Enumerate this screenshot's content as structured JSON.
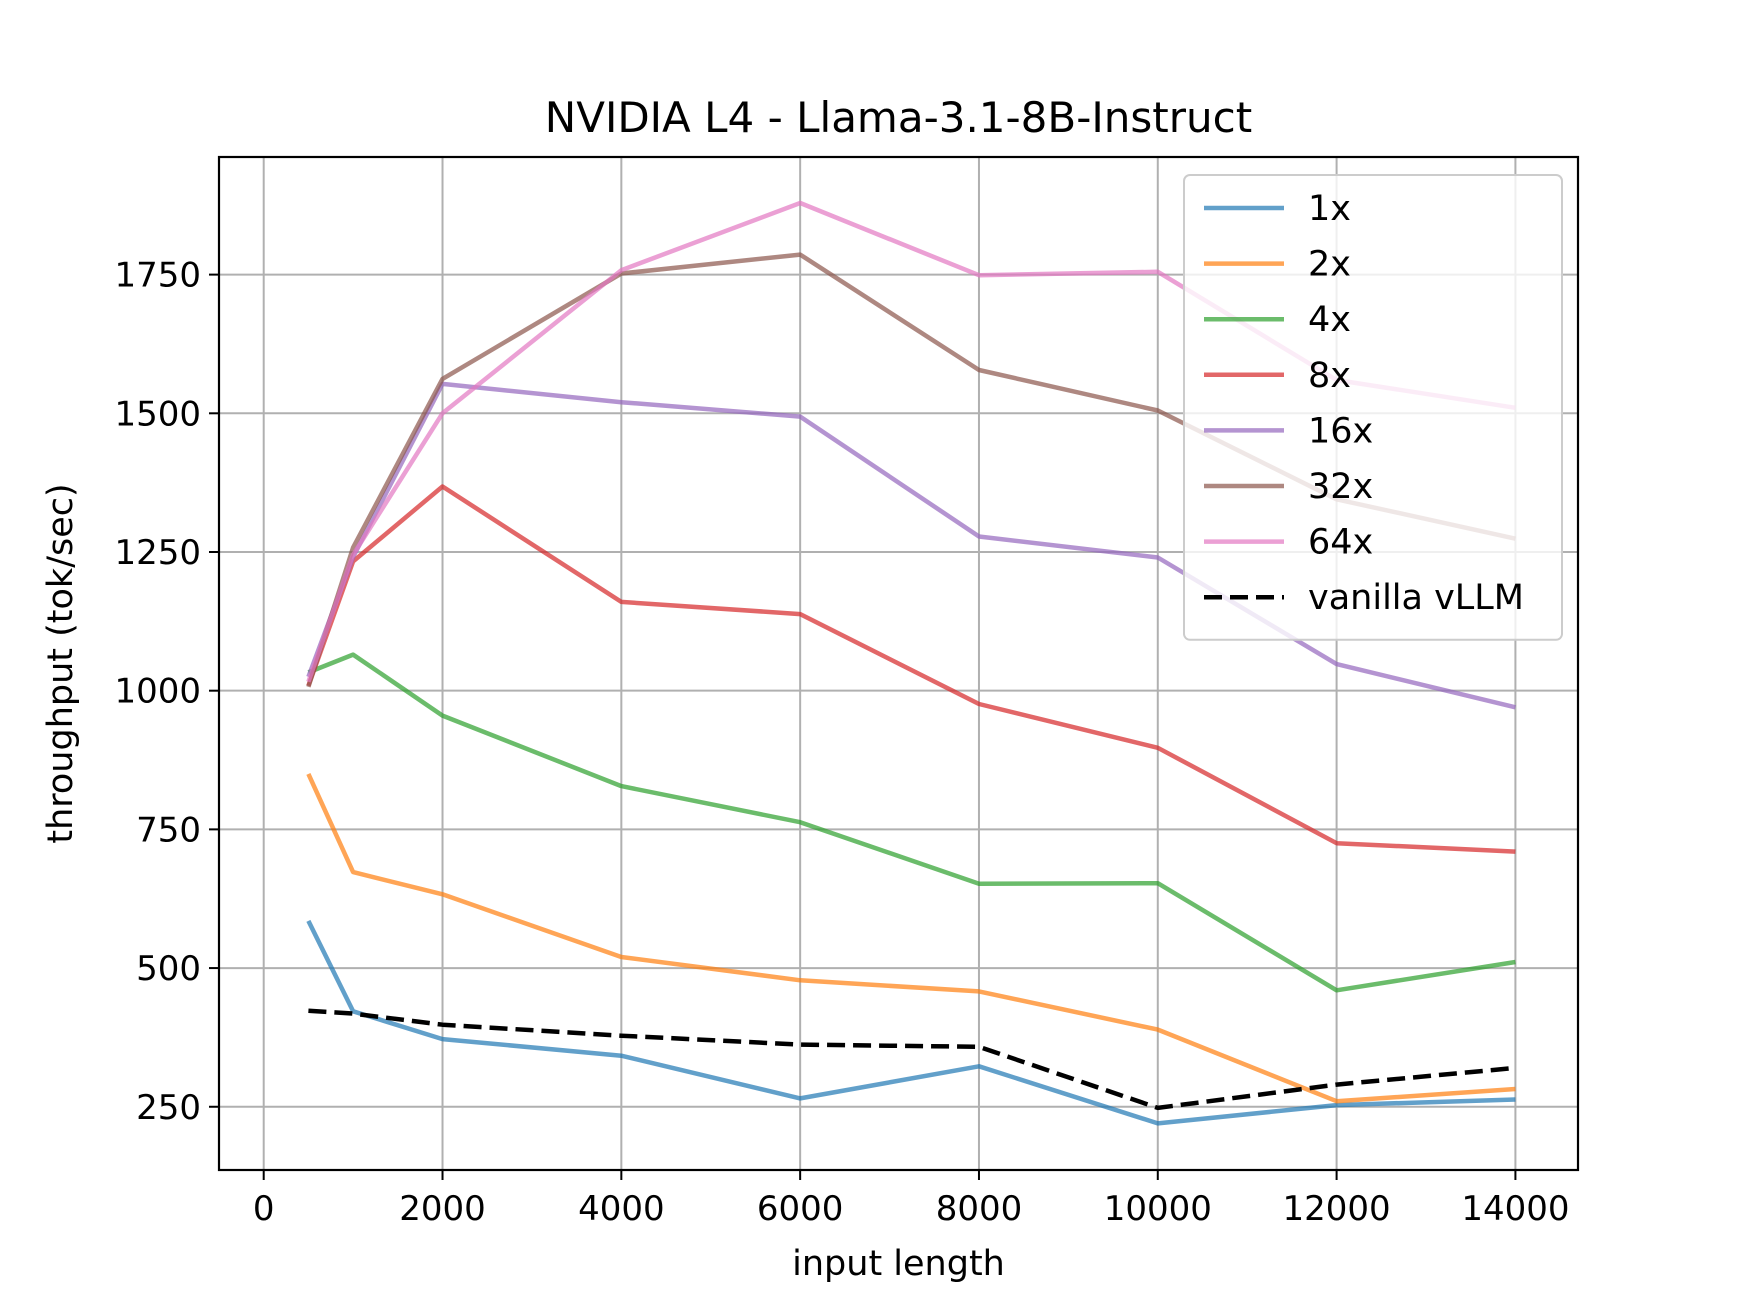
{
  "chart_data": {
    "type": "line",
    "title": "NVIDIA L4 - Llama-3.1-8B-Instruct",
    "xlabel": "input length",
    "ylabel": "throughput (tok/sec)",
    "xlim": [
      -500,
      14700
    ],
    "ylim": [
      136,
      1962
    ],
    "xticks": [
      0,
      2000,
      4000,
      6000,
      8000,
      10000,
      12000,
      14000
    ],
    "xtick_labels": [
      "0",
      "2000",
      "4000",
      "6000",
      "8000",
      "10000",
      "12000",
      "14000"
    ],
    "yticks": [
      250,
      500,
      750,
      1000,
      1250,
      1500,
      1750
    ],
    "ytick_labels": [
      "250",
      "500",
      "750",
      "1000",
      "1250",
      "1500",
      "1750"
    ],
    "grid": true,
    "legend_position": "top-right",
    "x": [
      500,
      1000,
      2000,
      4000,
      6000,
      8000,
      10000,
      12000,
      14000
    ],
    "series": [
      {
        "name": "1x",
        "color": "#1f77b4",
        "dash": "solid",
        "values": [
          585,
          422,
          372,
          342,
          265,
          323,
          220,
          253,
          263
        ]
      },
      {
        "name": "2x",
        "color": "#ff7f0e",
        "dash": "solid",
        "values": [
          850,
          673,
          633,
          520,
          478,
          458,
          389,
          260,
          282
        ]
      },
      {
        "name": "4x",
        "color": "#2ca02c",
        "dash": "solid",
        "values": [
          1033,
          1065,
          955,
          828,
          763,
          652,
          653,
          460,
          511
        ]
      },
      {
        "name": "8x",
        "color": "#d62728",
        "dash": "solid",
        "values": [
          1009,
          1233,
          1368,
          1160,
          1138,
          976,
          897,
          725,
          710
        ]
      },
      {
        "name": "16x",
        "color": "#9467bd",
        "dash": "solid",
        "values": [
          1025,
          1241,
          1553,
          1520,
          1494,
          1278,
          1240,
          1048,
          970
        ]
      },
      {
        "name": "32x",
        "color": "#8c564b",
        "dash": "solid",
        "values": [
          1007,
          1258,
          1562,
          1752,
          1786,
          1578,
          1505,
          1345,
          1274
        ]
      },
      {
        "name": "64x",
        "color": "#e377c2",
        "dash": "solid",
        "values": [
          1016,
          1245,
          1500,
          1758,
          1879,
          1749,
          1755,
          1560,
          1510
        ]
      },
      {
        "name": "vanilla vLLM",
        "color": "#000000",
        "dash": "dashed",
        "values": [
          423,
          418,
          398,
          378,
          362,
          358,
          248,
          290,
          320
        ]
      }
    ]
  }
}
